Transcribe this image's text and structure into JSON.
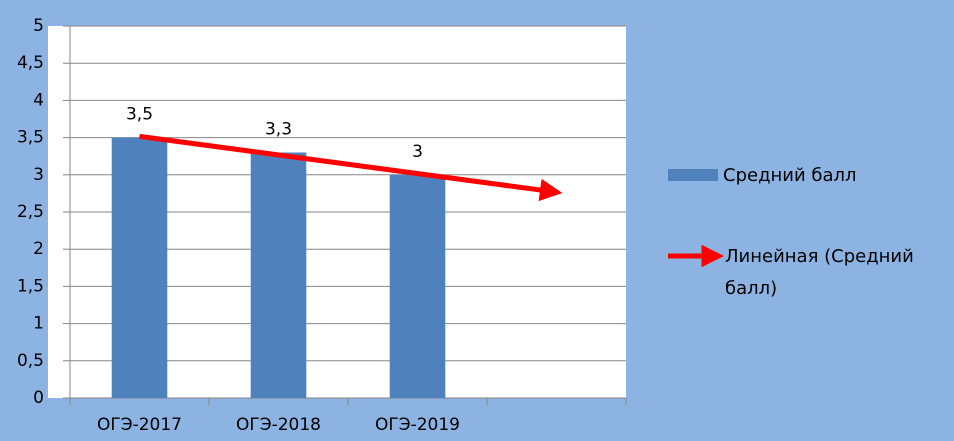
{
  "chart_data": {
    "type": "bar",
    "categories": [
      "ОГЭ-2017",
      "ОГЭ-2018",
      "ОГЭ-2019",
      null
    ],
    "series": [
      {
        "name": "Средний балл",
        "color": "#4f81bd",
        "values": [
          3.5,
          3.3,
          3,
          null
        ],
        "value_labels": [
          "3,5",
          "3,3",
          "3",
          null
        ]
      }
    ],
    "trendline": {
      "name": "Линейная (Средний балл)",
      "type": "linear",
      "color": "#ff0000"
    },
    "ylim": [
      0,
      5
    ],
    "yticks": [
      0,
      {
        "value": 0.5,
        "label": "0,5"
      },
      1,
      {
        "value": 1.5,
        "label": "1,5"
      },
      2,
      {
        "value": 2.5,
        "label": "2,5"
      },
      3,
      {
        "value": 3.5,
        "label": "3,5"
      },
      4,
      {
        "value": 4.5,
        "label": "4,5"
      },
      5
    ],
    "grid": true,
    "legend": "right"
  }
}
